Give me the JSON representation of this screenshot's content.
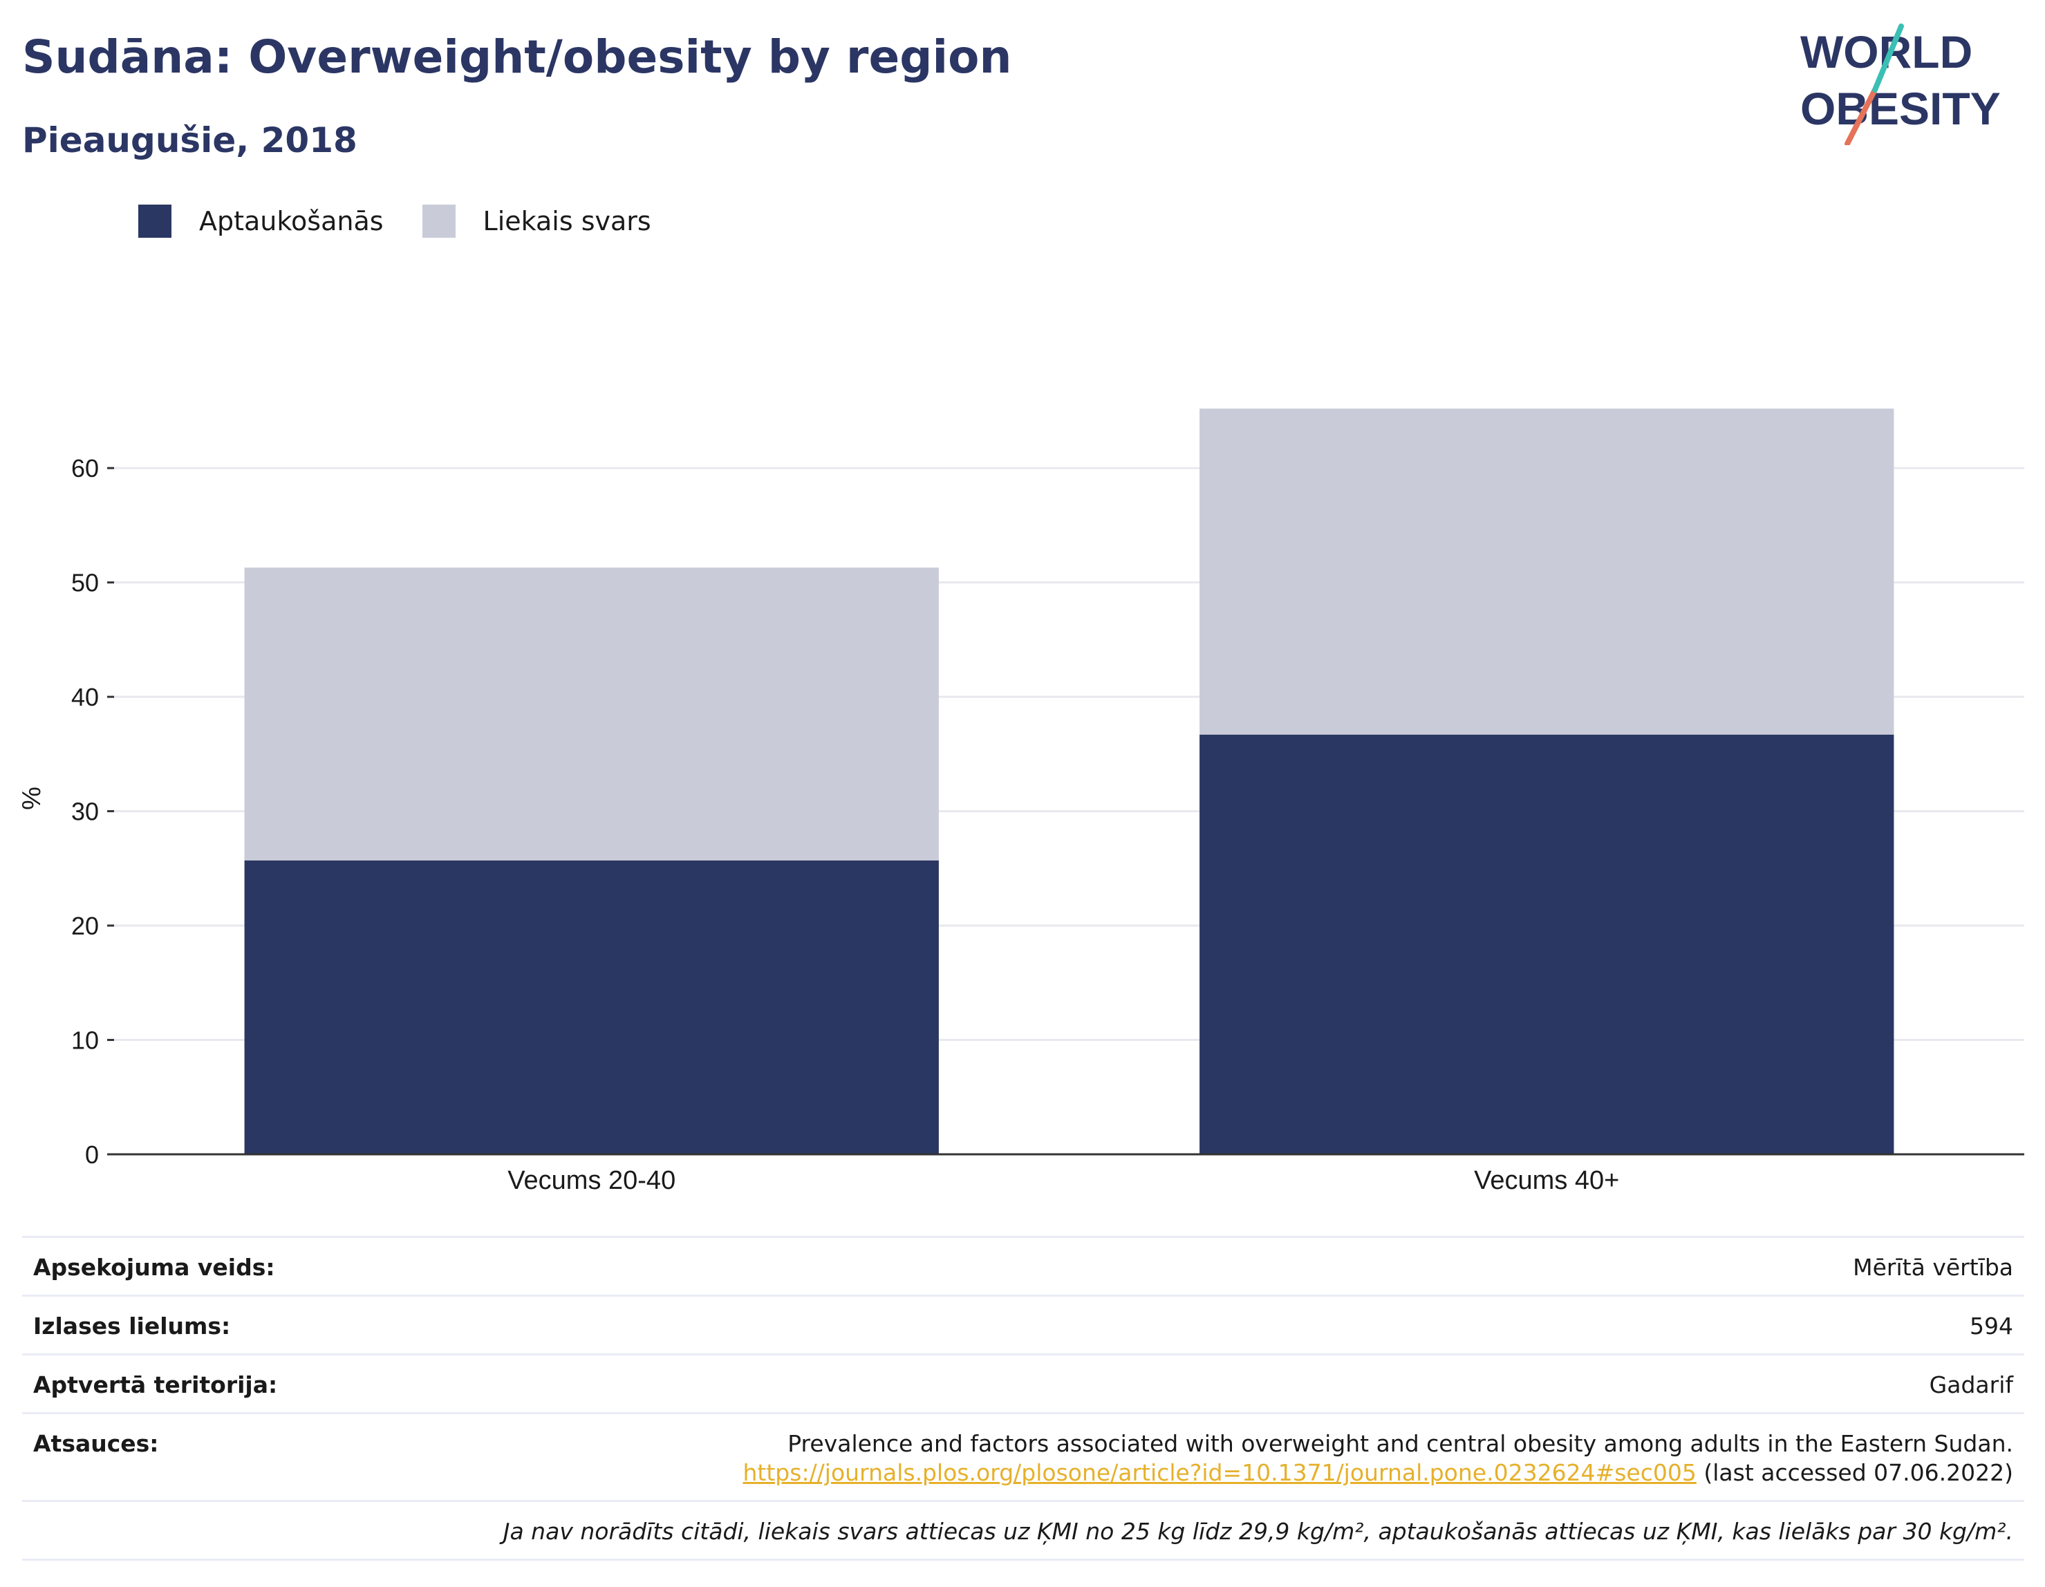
{
  "header": {
    "title": "Sudāna: Overweight/obesity by region",
    "subtitle": "Pieaugušie, 2018"
  },
  "logo": {
    "line1": "WORLD",
    "line2": "OBESITY"
  },
  "colors": {
    "obesity": "#2a3763",
    "overweight": "#c9ccd8",
    "title": "#2b3664",
    "link": "#e6b02a"
  },
  "chart_data": {
    "type": "bar",
    "stacked": true,
    "categories": [
      "Vecums 20-40",
      "Vecums 40+"
    ],
    "series": [
      {
        "name": "Aptaukošanās",
        "values": [
          25.7,
          36.7
        ]
      },
      {
        "name": "Liekais svars",
        "values": [
          25.6,
          28.5
        ]
      }
    ],
    "ylabel": "%",
    "ylim": [
      0,
      69.5
    ],
    "yticks": [
      0,
      10,
      20,
      30,
      40,
      50,
      60
    ],
    "grid": true,
    "legend": "top-left"
  },
  "info": {
    "survey_type_label": "Apsekojuma veids:",
    "survey_type_value": "Mērītā vērtība",
    "sample_size_label": "Izlases lielums:",
    "sample_size_value": "594",
    "coverage_label": "Aptvertā teritorija:",
    "coverage_value": "Gadarif",
    "references_label": "Atsauces:",
    "reference_text": "Prevalence and factors associated with overweight and central obesity among adults in the Eastern Sudan.",
    "reference_url": "https://journals.plos.org/plosone/article?id=10.1371/journal.pone.0232624#sec005",
    "reference_accessed": "(last accessed 07.06.2022)",
    "note": "Ja nav norādīts citādi, liekais svars attiecas uz ĶMI no 25 kg līdz 29,9 kg/m², aptaukošanās attiecas uz ĶMI, kas lielāks par 30 kg/m²."
  }
}
